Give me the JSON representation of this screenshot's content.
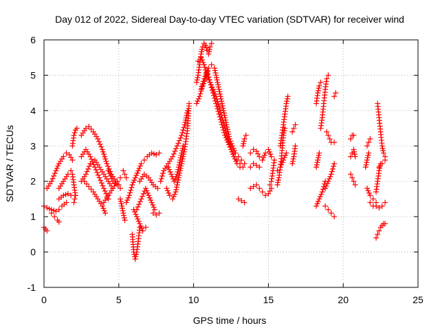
{
  "chart_data": {
    "type": "scatter",
    "title": "Day 012 of 2022, Sidereal Day-to-day VTEC variation (SDTVAR) for receiver wind",
    "xlabel": "GPS time / hours",
    "ylabel": "SDTVAR / TECUs",
    "xlim": [
      0,
      25
    ],
    "ylim": [
      -1,
      6
    ],
    "xticks": [
      0,
      5,
      10,
      15,
      20,
      25
    ],
    "yticks": [
      -1,
      0,
      1,
      2,
      3,
      4,
      5,
      6
    ],
    "grid": true,
    "marker": "+",
    "color": "#ff0000",
    "segments": [
      {
        "x": [
          0.0,
          0.1,
          0.2
        ],
        "y": [
          0.7,
          0.65,
          0.6
        ]
      },
      {
        "x": [
          0.0,
          0.2,
          0.5,
          0.8,
          1.0,
          1.2,
          1.5
        ],
        "y": [
          1.3,
          1.25,
          1.2,
          1.15,
          1.2,
          1.3,
          1.4
        ]
      },
      {
        "x": [
          0.2,
          0.5,
          0.8,
          1.0,
          1.3,
          1.5,
          1.7,
          1.9
        ],
        "y": [
          1.8,
          2.0,
          2.3,
          2.5,
          2.7,
          2.8,
          2.75,
          2.6
        ]
      },
      {
        "x": [
          0.5,
          0.7,
          0.9,
          1.0
        ],
        "y": [
          1.1,
          1.0,
          0.9,
          0.85
        ]
      },
      {
        "x": [
          1.0,
          1.3,
          1.6,
          1.8
        ],
        "y": [
          1.5,
          1.6,
          1.65,
          1.6
        ]
      },
      {
        "x": [
          1.0,
          1.3,
          1.6,
          1.8
        ],
        "y": [
          1.8,
          2.0,
          2.2,
          2.3
        ]
      },
      {
        "x": [
          1.9,
          2.0,
          2.1,
          2.2
        ],
        "y": [
          3.0,
          3.3,
          3.45,
          3.5
        ]
      },
      {
        "x": [
          1.9,
          2.0,
          2.1
        ],
        "y": [
          2.2,
          1.9,
          1.6
        ]
      },
      {
        "x": [
          2.0,
          2.05,
          2.1
        ],
        "y": [
          1.4,
          1.5,
          1.6
        ]
      },
      {
        "x": [
          2.5,
          2.8,
          3.0,
          3.3,
          3.6,
          3.9,
          4.2,
          4.5,
          4.8,
          5.0
        ],
        "y": [
          3.3,
          3.5,
          3.55,
          3.4,
          3.2,
          2.9,
          2.5,
          2.2,
          2.0,
          1.9
        ]
      },
      {
        "x": [
          2.5,
          2.8,
          3.1,
          3.4,
          3.7,
          4.0,
          4.3
        ],
        "y": [
          2.7,
          2.9,
          2.7,
          2.4,
          2.1,
          1.8,
          1.5
        ]
      },
      {
        "x": [
          2.5,
          2.8,
          3.1,
          3.4,
          3.7,
          4.0,
          4.3,
          4.6
        ],
        "y": [
          2.0,
          2.2,
          2.5,
          2.6,
          2.4,
          2.2,
          2.0,
          1.8
        ]
      },
      {
        "x": [
          2.7,
          3.0,
          3.3,
          3.6,
          3.9,
          4.1
        ],
        "y": [
          2.0,
          1.85,
          1.7,
          1.5,
          1.3,
          1.1
        ]
      },
      {
        "x": [
          4.0,
          4.3,
          4.6,
          4.9,
          5.1
        ],
        "y": [
          1.4,
          1.6,
          1.8,
          2.0,
          2.1
        ]
      },
      {
        "x": [
          4.3,
          4.6,
          4.9,
          5.1
        ],
        "y": [
          2.3,
          2.0,
          1.9,
          1.8
        ]
      },
      {
        "x": [
          5.3,
          5.4,
          5.5
        ],
        "y": [
          2.3,
          2.2,
          2.1
        ]
      },
      {
        "x": [
          5.1,
          5.2,
          5.3,
          5.4
        ],
        "y": [
          1.5,
          1.3,
          1.1,
          0.9
        ]
      },
      {
        "x": [
          5.5,
          5.7,
          5.9,
          6.1,
          6.3,
          6.5,
          6.7,
          6.9,
          7.2,
          7.5,
          7.7
        ],
        "y": [
          1.4,
          1.6,
          1.9,
          2.1,
          2.3,
          2.5,
          2.6,
          2.7,
          2.8,
          2.75,
          2.8
        ]
      },
      {
        "x": [
          5.9,
          6.0,
          6.1,
          6.2,
          6.3,
          6.4
        ],
        "y": [
          0.5,
          0.0,
          -0.2,
          0.0,
          0.3,
          0.7
        ]
      },
      {
        "x": [
          6.0,
          6.2,
          6.4,
          6.6,
          6.8
        ],
        "y": [
          1.2,
          1.0,
          0.8,
          0.6,
          0.7
        ]
      },
      {
        "x": [
          6.2,
          6.5,
          6.8,
          7.0,
          7.2,
          7.4
        ],
        "y": [
          1.2,
          1.5,
          1.8,
          1.6,
          1.4,
          1.2
        ]
      },
      {
        "x": [
          6.4,
          6.7,
          7.0,
          7.3,
          7.6
        ],
        "y": [
          2.0,
          2.2,
          2.1,
          1.9,
          1.8
        ]
      },
      {
        "x": [
          7.3,
          7.5,
          7.7
        ],
        "y": [
          1.1,
          1.05,
          1.1
        ]
      },
      {
        "x": [
          7.8,
          8.0,
          8.3,
          8.6,
          8.9,
          9.2,
          9.4,
          9.6
        ],
        "y": [
          2.0,
          2.3,
          2.5,
          2.7,
          3.0,
          3.3,
          3.6,
          4.0
        ]
      },
      {
        "x": [
          8.2,
          8.4,
          8.6,
          8.8,
          9.0,
          9.2,
          9.4,
          9.6,
          9.7
        ],
        "y": [
          1.8,
          1.6,
          1.5,
          1.7,
          2.1,
          2.5,
          2.9,
          3.5,
          4.2
        ]
      },
      {
        "x": [
          8.3,
          8.5,
          8.7,
          8.9,
          9.1,
          9.3
        ],
        "y": [
          2.4,
          2.2,
          2.0,
          2.2,
          2.6,
          3.0
        ]
      },
      {
        "x": [
          10.2,
          10.3,
          10.4,
          10.5,
          10.6,
          10.7,
          10.8,
          10.9,
          11.0,
          11.1,
          11.2
        ],
        "y": [
          4.8,
          5.0,
          5.3,
          5.6,
          5.8,
          5.9,
          5.85,
          5.7,
          5.6,
          5.8,
          5.9
        ]
      },
      {
        "x": [
          10.2,
          10.4,
          10.6,
          10.8,
          11.0,
          11.2,
          11.4,
          11.6,
          11.8,
          12.0,
          12.2,
          12.4,
          12.6,
          12.8,
          13.0,
          13.2,
          13.4
        ],
        "y": [
          4.2,
          4.4,
          4.7,
          4.9,
          5.2,
          5.3,
          5.2,
          4.8,
          4.4,
          4.0,
          3.6,
          3.2,
          3.0,
          2.8,
          2.7,
          2.6,
          2.5
        ]
      },
      {
        "x": [
          10.3,
          10.5,
          10.7,
          10.9,
          11.1,
          11.3,
          11.5,
          11.7,
          11.9,
          12.1,
          12.3,
          12.5,
          12.7,
          12.9,
          13.1
        ],
        "y": [
          5.4,
          5.5,
          5.3,
          5.0,
          4.8,
          4.6,
          4.4,
          4.1,
          3.8,
          3.5,
          3.2,
          2.9,
          2.7,
          2.5,
          2.4
        ]
      },
      {
        "x": [
          10.5,
          10.7,
          10.9,
          11.1,
          11.3,
          11.5,
          11.7,
          11.9,
          12.1,
          12.3,
          12.5,
          12.7,
          12.9,
          13.1,
          13.3
        ],
        "y": [
          4.6,
          4.9,
          5.1,
          4.8,
          4.5,
          4.2,
          3.9,
          3.6,
          3.3,
          3.1,
          2.9,
          2.7,
          2.6,
          2.5,
          2.4
        ]
      },
      {
        "x": [
          13.0,
          13.2,
          13.4
        ],
        "y": [
          1.5,
          1.45,
          1.4
        ]
      },
      {
        "x": [
          13.3,
          13.4,
          13.5
        ],
        "y": [
          3.0,
          3.2,
          3.3
        ]
      },
      {
        "x": [
          13.8,
          14.0,
          14.2,
          14.4
        ],
        "y": [
          2.8,
          2.9,
          2.85,
          2.7
        ]
      },
      {
        "x": [
          13.8,
          14.0,
          14.2,
          14.4
        ],
        "y": [
          2.4,
          2.5,
          2.45,
          2.4
        ]
      },
      {
        "x": [
          13.8,
          14.0,
          14.2,
          14.4
        ],
        "y": [
          1.8,
          1.85,
          1.9,
          1.8
        ]
      },
      {
        "x": [
          14.6,
          14.8,
          15.0,
          15.2
        ],
        "y": [
          1.7,
          1.6,
          1.65,
          1.8
        ]
      },
      {
        "x": [
          14.6,
          14.8,
          15.0,
          15.2
        ],
        "y": [
          2.6,
          2.8,
          2.9,
          2.7
        ]
      },
      {
        "x": [
          15.1,
          15.2,
          15.3,
          15.4
        ],
        "y": [
          1.9,
          2.0,
          2.3,
          2.6
        ]
      },
      {
        "x": [
          15.6,
          15.7,
          15.8,
          15.9,
          16.0,
          16.1
        ],
        "y": [
          1.9,
          2.1,
          2.4,
          2.8,
          3.3,
          3.5
        ]
      },
      {
        "x": [
          15.8,
          15.9,
          16.0,
          16.1,
          16.2,
          16.3
        ],
        "y": [
          3.0,
          3.3,
          3.6,
          3.9,
          4.2,
          4.4
        ]
      },
      {
        "x": [
          15.6,
          15.8,
          16.0,
          16.2
        ],
        "y": [
          2.3,
          2.4,
          2.6,
          2.8
        ]
      },
      {
        "x": [
          16.6,
          16.7,
          16.8
        ],
        "y": [
          2.5,
          2.7,
          3.0
        ]
      },
      {
        "x": [
          16.6,
          16.7,
          16.8
        ],
        "y": [
          3.4,
          3.5,
          3.6
        ]
      },
      {
        "x": [
          18.2,
          18.4,
          18.6,
          18.8
        ],
        "y": [
          1.3,
          1.5,
          1.7,
          2.0
        ]
      },
      {
        "x": [
          18.2,
          18.3,
          18.4
        ],
        "y": [
          2.4,
          2.6,
          2.8
        ]
      },
      {
        "x": [
          18.5,
          18.6,
          18.7,
          18.8,
          18.9,
          19.0
        ],
        "y": [
          3.5,
          3.8,
          4.2,
          4.6,
          4.9,
          5.0
        ]
      },
      {
        "x": [
          18.2,
          18.3,
          18.4,
          18.5
        ],
        "y": [
          4.2,
          4.5,
          4.7,
          4.8
        ]
      },
      {
        "x": [
          18.8,
          19.0,
          19.2,
          19.4
        ],
        "y": [
          1.3,
          1.2,
          1.1,
          1.0
        ]
      },
      {
        "x": [
          18.8,
          19.0,
          19.2,
          19.4
        ],
        "y": [
          1.8,
          2.0,
          2.2,
          2.5
        ]
      },
      {
        "x": [
          18.9,
          19.0,
          19.1,
          19.2,
          19.4
        ],
        "y": [
          3.4,
          3.3,
          3.2,
          3.1,
          3.1
        ]
      },
      {
        "x": [
          19.4,
          19.5
        ],
        "y": [
          4.4,
          4.5
        ]
      },
      {
        "x": [
          20.5,
          20.6,
          20.7,
          20.8
        ],
        "y": [
          2.2,
          2.1,
          2.0,
          1.9
        ]
      },
      {
        "x": [
          20.5,
          20.6,
          20.7,
          20.8
        ],
        "y": [
          2.7,
          2.8,
          2.9,
          2.7
        ]
      },
      {
        "x": [
          20.5,
          20.6,
          20.7
        ],
        "y": [
          3.2,
          3.3,
          3.3
        ]
      },
      {
        "x": [
          21.5,
          21.6,
          21.7
        ],
        "y": [
          2.4,
          2.6,
          2.8
        ]
      },
      {
        "x": [
          21.6,
          21.7,
          21.8
        ],
        "y": [
          3.0,
          3.1,
          3.2
        ]
      },
      {
        "x": [
          21.6,
          21.8,
          22.0,
          22.2
        ],
        "y": [
          1.8,
          1.6,
          1.5,
          1.4
        ]
      },
      {
        "x": [
          21.8,
          22.0,
          22.2,
          22.4,
          22.6,
          22.8
        ],
        "y": [
          1.4,
          1.3,
          1.3,
          1.25,
          1.3,
          1.4
        ]
      },
      {
        "x": [
          22.2,
          22.3,
          22.4,
          22.5,
          22.6,
          22.7,
          22.8
        ],
        "y": [
          0.4,
          0.5,
          0.6,
          0.7,
          0.75,
          0.8,
          0.8
        ]
      },
      {
        "x": [
          22.2,
          22.3,
          22.4,
          22.5
        ],
        "y": [
          1.7,
          2.0,
          2.3,
          2.5
        ]
      },
      {
        "x": [
          22.3,
          22.4,
          22.5,
          22.6,
          22.7,
          22.8
        ],
        "y": [
          4.2,
          3.8,
          3.4,
          3.0,
          2.8,
          2.7
        ]
      },
      {
        "x": [
          22.4,
          22.6,
          22.8
        ],
        "y": [
          2.4,
          2.5,
          2.6
        ]
      }
    ]
  }
}
